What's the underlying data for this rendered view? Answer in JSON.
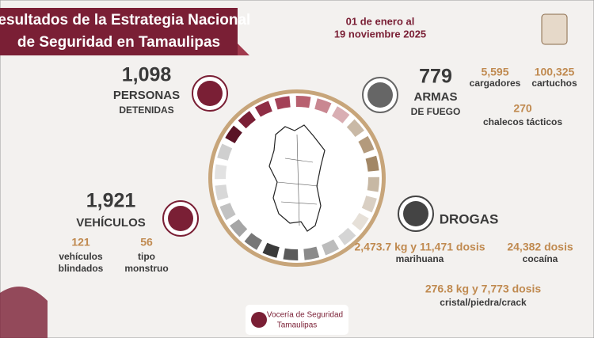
{
  "header": {
    "title_lines": [
      "Resultados de la Estrategia Nacional",
      "de Seguridad en Tamaulipas"
    ],
    "date_lines": [
      "01 de enero al",
      "19 noviembre 2025"
    ]
  },
  "personas": {
    "total": "1,098",
    "label_lines": [
      "PERSONAS",
      "DETENIDAS"
    ]
  },
  "armas": {
    "total": "779",
    "label_lines": [
      "ARMAS",
      "DE FUEGO"
    ],
    "details": [
      {
        "value": "5,595",
        "label": "cargadores"
      },
      {
        "value": "100,325",
        "label": "cartuchos"
      },
      {
        "value": "270",
        "label": "chalecos tácticos"
      }
    ]
  },
  "vehiculos": {
    "total": "1,921",
    "label": "VEHÍCULOS",
    "details": [
      {
        "value": "121",
        "label_lines": [
          "vehículos",
          "blindados"
        ]
      },
      {
        "value": "56",
        "label_lines": [
          "tipo",
          "monstruo"
        ]
      }
    ]
  },
  "drogas": {
    "label": "DROGAS",
    "details": [
      {
        "value": "2,473.7 kg y 11,471 dosis",
        "label": "marihuana"
      },
      {
        "value": "24,382 dosis",
        "label": "cocaína"
      },
      {
        "value": "276.8 kg y 7,773 dosis",
        "label": "cristal/piedra/crack"
      }
    ]
  },
  "footer": {
    "lines": [
      "Vocería de Seguridad",
      "Tamaulipas"
    ]
  }
}
